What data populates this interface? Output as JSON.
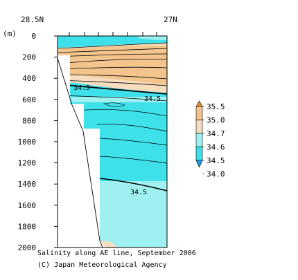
{
  "chart_data": {
    "type": "contour",
    "title": "Salinity along AE line, September 2006",
    "credit": "(C) Japan Meteorological Agency",
    "x_labels": {
      "left": "28.5N",
      "right": "27N"
    },
    "y_unit": "(m)",
    "ylim": [
      0,
      2000
    ],
    "yticks": [
      0,
      200,
      400,
      600,
      800,
      1000,
      1200,
      1400,
      1600,
      1800,
      2000
    ],
    "contour_labels": [
      "34.5",
      "34.5",
      "34.5"
    ],
    "legend": {
      "levels": [
        "35.5",
        "35.0",
        "34.7",
        "34.6",
        "34.5",
        "34.0"
      ],
      "colors": [
        "#e8902a",
        "#f3c48c",
        "#f7dcbe",
        "#9ff0f0",
        "#3ee0ea",
        "#1a9cf0"
      ]
    },
    "fills": {
      "high": "#f3c48c",
      "mid": "#f7dcbe",
      "lowmid": "#9ff0f0",
      "low": "#3ee0ea",
      "lowest": "#1a9cf0"
    }
  }
}
